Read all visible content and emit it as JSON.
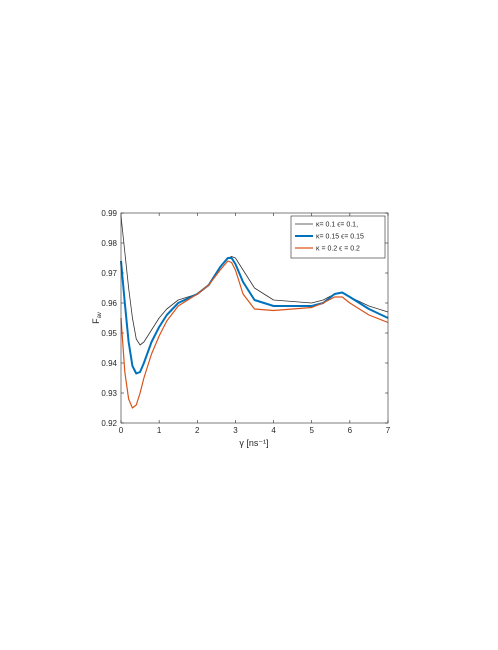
{
  "chart_data": {
    "type": "line",
    "xlabel": "γ [ns⁻¹]",
    "ylabel": [
      "F",
      "av"
    ],
    "x": [
      0,
      0.1,
      0.2,
      0.3,
      0.4,
      0.5,
      0.6,
      0.8,
      1,
      1.2,
      1.5,
      2,
      2.3,
      2.6,
      2.8,
      2.9,
      3,
      3.2,
      3.5,
      4,
      4.5,
      5,
      5.3,
      5.6,
      5.8,
      6,
      6.5,
      7
    ],
    "series": [
      {
        "name": "κ= 0.1 ϵ= 0.1,",
        "color": "#333333",
        "width": 0.8,
        "values": [
          0.989,
          0.977,
          0.965,
          0.955,
          0.948,
          0.946,
          0.947,
          0.951,
          0.955,
          0.958,
          0.961,
          0.963,
          0.966,
          0.972,
          0.975,
          0.9755,
          0.975,
          0.971,
          0.965,
          0.961,
          0.9605,
          0.96,
          0.961,
          0.963,
          0.9635,
          0.962,
          0.959,
          0.957
        ]
      },
      {
        "name": "κ= 0.15 ϵ= 0.15",
        "color": "#0072bd",
        "width": 2,
        "values": [
          0.974,
          0.96,
          0.947,
          0.939,
          0.9365,
          0.937,
          0.94,
          0.947,
          0.952,
          0.956,
          0.96,
          0.963,
          0.966,
          0.972,
          0.975,
          0.975,
          0.973,
          0.967,
          0.961,
          0.959,
          0.959,
          0.959,
          0.96,
          0.963,
          0.9635,
          0.962,
          0.958,
          0.955
        ]
      },
      {
        "name": "κ = 0.2 ϵ = 0.2",
        "color": "#d95319",
        "width": 1.2,
        "values": [
          0.955,
          0.937,
          0.928,
          0.925,
          0.926,
          0.93,
          0.935,
          0.943,
          0.949,
          0.954,
          0.959,
          0.963,
          0.966,
          0.971,
          0.974,
          0.9735,
          0.971,
          0.963,
          0.958,
          0.9575,
          0.958,
          0.9585,
          0.96,
          0.962,
          0.962,
          0.96,
          0.956,
          0.9535
        ]
      }
    ],
    "xlim": [
      0,
      7
    ],
    "xticks": [
      0,
      1,
      2,
      3,
      4,
      5,
      6,
      7
    ],
    "ylim": [
      0.92,
      0.99
    ],
    "yticks": [
      0.92,
      0.93,
      0.94,
      0.95,
      0.96,
      0.97,
      0.98,
      0.99
    ],
    "legend": "upper right"
  }
}
